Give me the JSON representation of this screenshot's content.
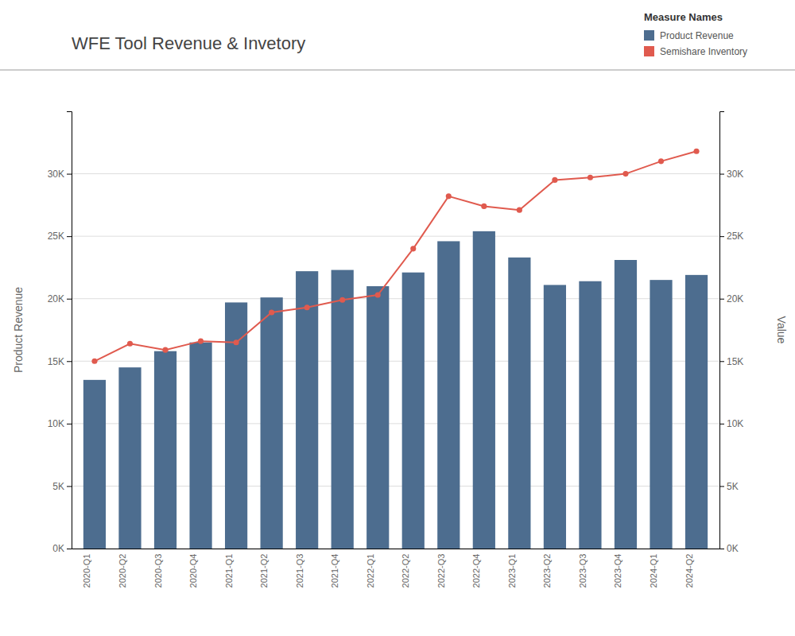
{
  "chart_data": {
    "type": "bar",
    "title": "WFE Tool Revenue & Invetory",
    "ylabel": "Product Revenue",
    "y2label": "Value",
    "legend_title": "Measure Names",
    "categories": [
      "2020-Q1",
      "2020-Q2",
      "2020-Q3",
      "2020-Q4",
      "2021-Q1",
      "2021-Q2",
      "2021-Q3",
      "2021-Q4",
      "2022-Q1",
      "2022-Q2",
      "2022-Q3",
      "2022-Q4",
      "2023-Q1",
      "2023-Q2",
      "2023-Q3",
      "2023-Q4",
      "2024-Q1",
      "2024-Q2"
    ],
    "series": [
      {
        "name": "Product Revenue",
        "type": "bar",
        "color": "#4d6d8f",
        "values": [
          13500,
          14500,
          15800,
          16500,
          19700,
          20100,
          22200,
          22300,
          21000,
          22100,
          24600,
          25400,
          23300,
          21100,
          21400,
          23100,
          21500,
          21900
        ]
      },
      {
        "name": "Semishare Inventory",
        "type": "line",
        "axis": "y2",
        "color": "#e05a4e",
        "marker": "circle",
        "values": [
          15000,
          16400,
          15900,
          16600,
          16500,
          18900,
          19300,
          19900,
          20300,
          24000,
          28200,
          27400,
          27100,
          29500,
          29700,
          30000,
          31000,
          31800
        ]
      }
    ],
    "ylim": [
      0,
      35000
    ],
    "yticks": [
      {
        "value": 0,
        "label": "0K"
      },
      {
        "value": 5000,
        "label": "5K"
      },
      {
        "value": 10000,
        "label": "10K"
      },
      {
        "value": 15000,
        "label": "15K"
      },
      {
        "value": 20000,
        "label": "20K"
      },
      {
        "value": 25000,
        "label": "25K"
      },
      {
        "value": 30000,
        "label": "30K"
      }
    ],
    "y2lim": [
      0,
      35000
    ],
    "y2ticks": [
      {
        "value": 0,
        "label": "0K"
      },
      {
        "value": 5000,
        "label": "5K"
      },
      {
        "value": 10000,
        "label": "10K"
      },
      {
        "value": 15000,
        "label": "15K"
      },
      {
        "value": 20000,
        "label": "20K"
      },
      {
        "value": 25000,
        "label": "25K"
      },
      {
        "value": 30000,
        "label": "30K"
      }
    ],
    "grid": true,
    "legend": "upper right"
  }
}
